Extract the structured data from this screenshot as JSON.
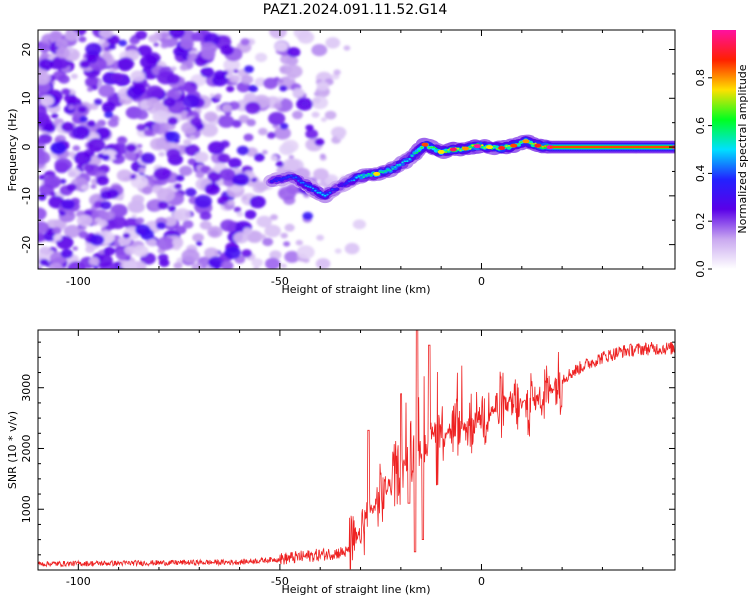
{
  "title": "PAZ1.2024.091.11.52.G14",
  "chart_data": [
    {
      "type": "heatmap",
      "xlabel": "Height of straight line (km)",
      "ylabel": "Frequency (Hz)",
      "xlim": [
        -110,
        48
      ],
      "ylim": [
        -25,
        24
      ],
      "xticks": [
        -100,
        -50,
        0
      ],
      "yticks": [
        -20,
        -10,
        0,
        10,
        20
      ],
      "colorbar": {
        "label": "Normalized spectral amplitude",
        "range": [
          0,
          1
        ],
        "ticks": [
          0.0,
          0.2,
          0.4,
          0.6,
          0.8
        ],
        "colors": [
          "#ffffff",
          "#c9a8f0",
          "#5a00e8",
          "#2222ff",
          "#00e0ff",
          "#00ff20",
          "#ffe000",
          "#ff2000",
          "#ff10a0"
        ]
      },
      "ridge": [
        {
          "x": -52,
          "y": -7,
          "a": 0.35
        },
        {
          "x": -47,
          "y": -6,
          "a": 0.4
        },
        {
          "x": -43,
          "y": -8,
          "a": 0.45
        },
        {
          "x": -39,
          "y": -10,
          "a": 0.5
        },
        {
          "x": -35,
          "y": -8,
          "a": 0.3
        },
        {
          "x": -30,
          "y": -6,
          "a": 0.55
        },
        {
          "x": -26,
          "y": -5.5,
          "a": 0.6
        },
        {
          "x": -22,
          "y": -4.5,
          "a": 0.55
        },
        {
          "x": -18,
          "y": -2.5,
          "a": 0.5
        },
        {
          "x": -14,
          "y": 0.5,
          "a": 0.7
        },
        {
          "x": -10,
          "y": -1,
          "a": 0.6
        },
        {
          "x": -7,
          "y": -0.5,
          "a": 0.8
        },
        {
          "x": -4,
          "y": -0.3,
          "a": 0.65
        },
        {
          "x": -1,
          "y": 0.2,
          "a": 0.85
        },
        {
          "x": 2,
          "y": 0,
          "a": 0.6
        },
        {
          "x": 5,
          "y": -0.2,
          "a": 0.75
        },
        {
          "x": 8,
          "y": 0.3,
          "a": 0.7
        },
        {
          "x": 11,
          "y": 1.2,
          "a": 0.65
        },
        {
          "x": 14,
          "y": 0.3,
          "a": 0.75
        },
        {
          "x": 17,
          "y": 0,
          "a": 0.85
        },
        {
          "x": 48,
          "y": 0,
          "a": 0.85
        }
      ]
    },
    {
      "type": "line",
      "xlabel": "Height of straight line (km)",
      "ylabel": "SNR (10 * v/v)",
      "xlim": [
        -110,
        48
      ],
      "ylim": [
        0,
        3950
      ],
      "xticks": [
        -100,
        -50,
        0
      ],
      "yticks": [
        1000,
        2000,
        3000
      ],
      "color": "#ee2222",
      "envelope": [
        {
          "x": -110,
          "y": 100
        },
        {
          "x": -60,
          "y": 130
        },
        {
          "x": -50,
          "y": 180
        },
        {
          "x": -40,
          "y": 250
        },
        {
          "x": -33,
          "y": 300
        },
        {
          "x": -30,
          "y": 600
        },
        {
          "x": -27,
          "y": 1000
        },
        {
          "x": -23,
          "y": 1400
        },
        {
          "x": -20,
          "y": 1700
        },
        {
          "x": -16,
          "y": 2000
        },
        {
          "x": -13,
          "y": 2300
        },
        {
          "x": -8,
          "y": 2300
        },
        {
          "x": -4,
          "y": 2350
        },
        {
          "x": 0,
          "y": 2550
        },
        {
          "x": 5,
          "y": 2700
        },
        {
          "x": 10,
          "y": 2700
        },
        {
          "x": 15,
          "y": 2850
        },
        {
          "x": 20,
          "y": 3150
        },
        {
          "x": 25,
          "y": 3350
        },
        {
          "x": 30,
          "y": 3500
        },
        {
          "x": 35,
          "y": 3600
        },
        {
          "x": 40,
          "y": 3640
        },
        {
          "x": 48,
          "y": 3650
        }
      ],
      "spikes": [
        {
          "x": -16,
          "y": 3950
        },
        {
          "x": -16.5,
          "y": 300
        },
        {
          "x": -13,
          "y": 3700
        },
        {
          "x": -14.5,
          "y": 500
        },
        {
          "x": -20,
          "y": 2900
        },
        {
          "x": -28,
          "y": 2300
        },
        {
          "x": -11,
          "y": 1400
        },
        {
          "x": -18,
          "y": 1100
        }
      ]
    }
  ]
}
